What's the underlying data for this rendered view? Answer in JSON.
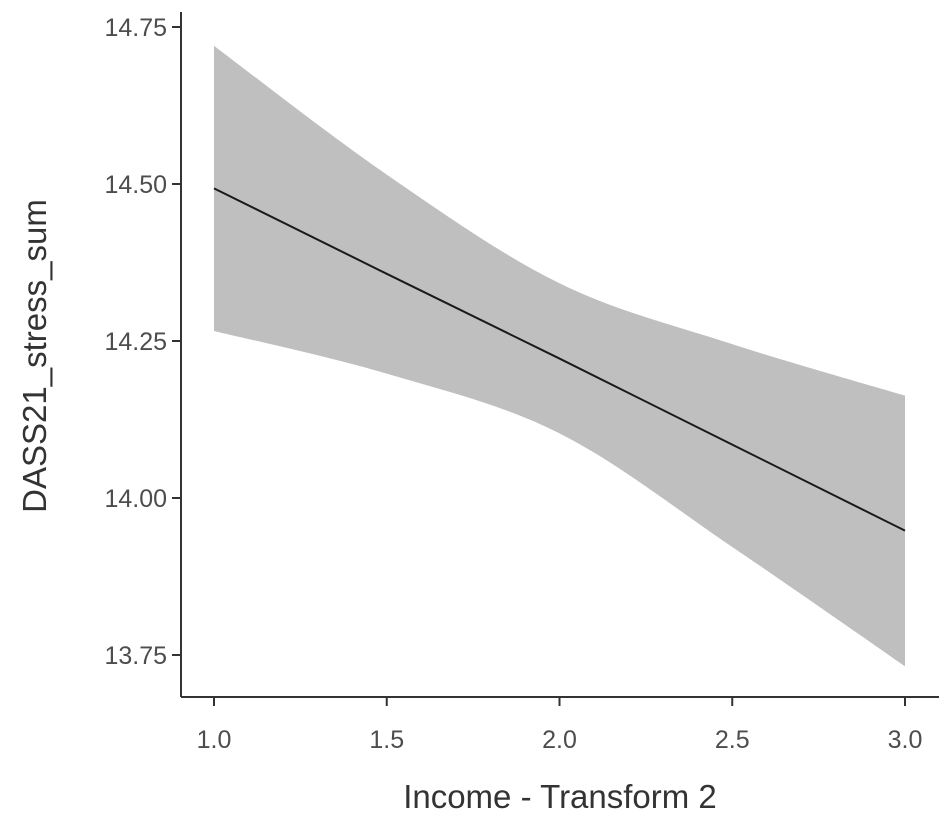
{
  "chart_data": {
    "type": "line",
    "title": "",
    "xlabel": "Income - Transform 2",
    "ylabel": "DASS21_stress_sum",
    "xlim": [
      0.9,
      3.1
    ],
    "ylim": [
      13.7,
      14.77
    ],
    "xticks": [
      1.0,
      1.5,
      2.0,
      2.5,
      3.0
    ],
    "xtick_labels": [
      "1.0",
      "1.5",
      "2.0",
      "2.5",
      "3.0"
    ],
    "yticks": [
      13.75,
      14.0,
      14.25,
      14.5,
      14.75
    ],
    "ytick_labels": [
      "13.75",
      "14.00",
      "14.25",
      "14.50",
      "14.75"
    ],
    "grid": false,
    "line_color": "#1a1a1a",
    "band_color": "#bfbfbf",
    "series": [
      {
        "x": [
          1.0,
          1.5,
          2.0,
          2.5,
          3.0
        ],
        "y": [
          14.493,
          14.357,
          14.222,
          14.085,
          13.948
        ],
        "lower": [
          14.266,
          14.198,
          14.103,
          13.922,
          13.732
        ],
        "upper": [
          14.72,
          14.515,
          14.342,
          14.245,
          14.163
        ]
      }
    ]
  }
}
